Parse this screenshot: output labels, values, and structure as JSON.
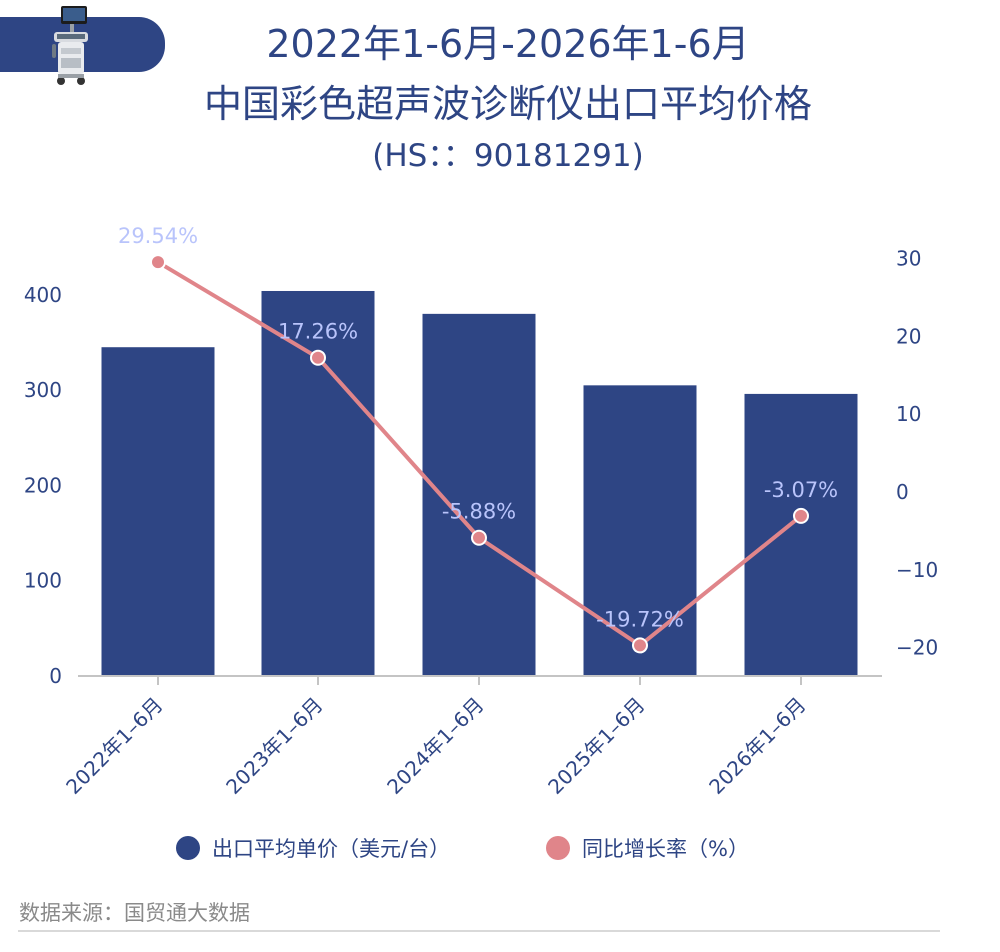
{
  "header": {
    "title_line1": "2022年1-6月-2026年1-6月",
    "title_line2": "中国彩色超声波诊断仪出口平均价格",
    "title_line3": "(HS：：90181291)",
    "device_icon": "ultrasound-machine-icon"
  },
  "colors": {
    "bar": "#2e4584",
    "line": "#e0858a",
    "label": "#b9c4fb",
    "text": "#2e4584"
  },
  "chart_data": {
    "type": "bar",
    "categories": [
      "2022年1–6月",
      "2023年1–6月",
      "2024年1–6月",
      "2025年1–6月",
      "2026年1–6月"
    ],
    "series": [
      {
        "name": "出口平均单价（美元/台）",
        "type": "bar",
        "axis": "left",
        "values": [
          345,
          404,
          380,
          305,
          296
        ]
      },
      {
        "name": "同比增长率（%）",
        "type": "line",
        "axis": "right",
        "values": [
          29.54,
          17.26,
          -5.88,
          -19.72,
          -3.07
        ],
        "labels": [
          "29.54%",
          "17.26%",
          "-5.88%",
          "-19.72%",
          "-3.07%"
        ]
      }
    ],
    "y_left": {
      "ticks": [
        "0",
        "100",
        "200",
        "300",
        "400"
      ],
      "range": [
        0,
        420
      ]
    },
    "y_right": {
      "ticks": [
        "−20",
        "−10",
        "0",
        "10",
        "20",
        "30"
      ],
      "range": [
        -24,
        32
      ]
    },
    "legend_position": "bottom",
    "grid": false
  },
  "legend": {
    "items": [
      {
        "label": "出口平均单价（美元/台）",
        "color": "#2e4584"
      },
      {
        "label": "同比增长率（%）",
        "color": "#e0858a"
      }
    ]
  },
  "footer": {
    "source": "数据来源：国贸通大数据"
  }
}
